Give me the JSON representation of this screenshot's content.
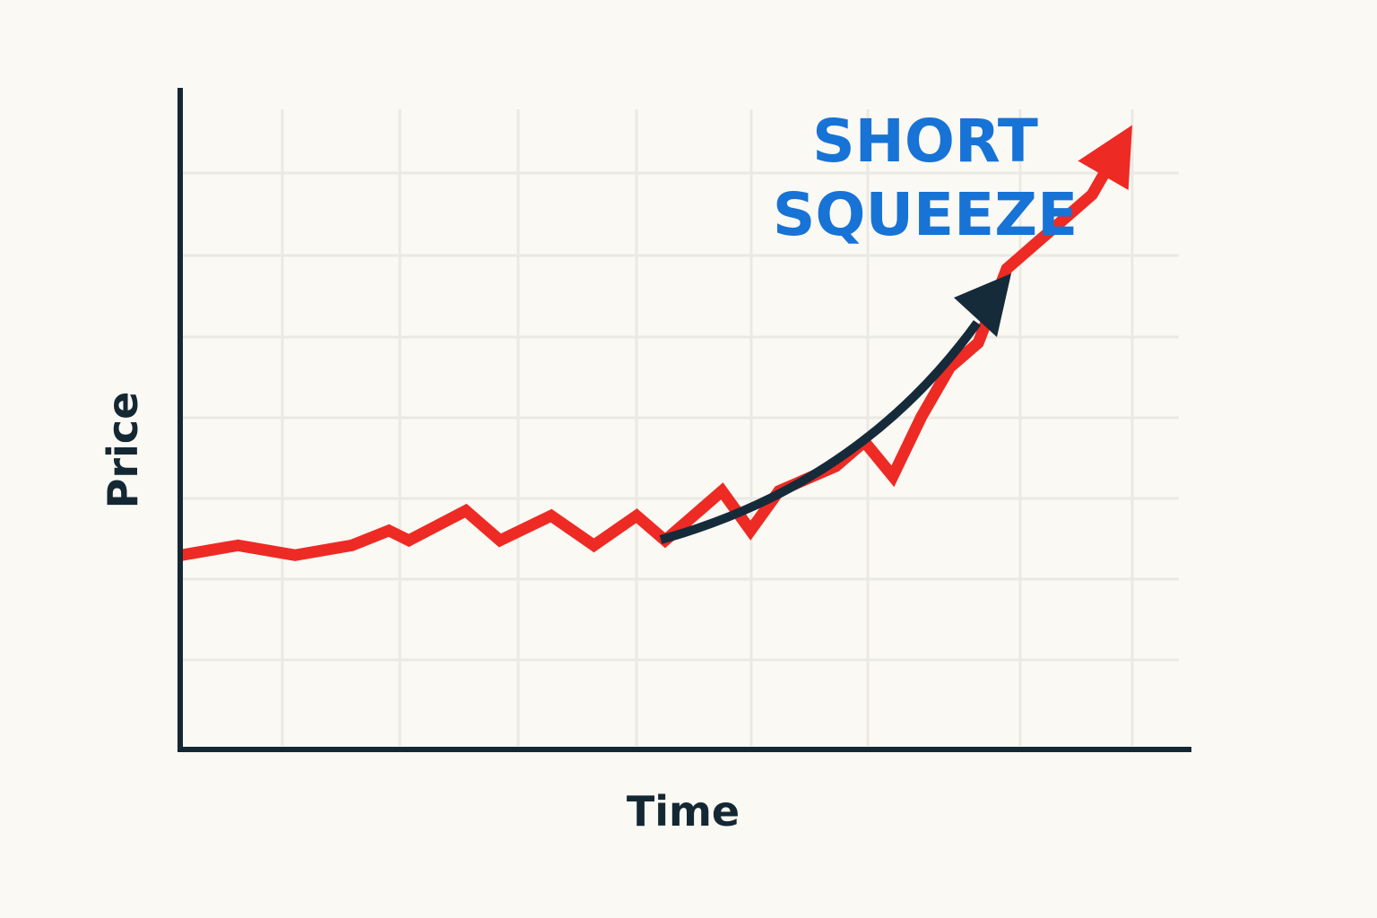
{
  "chart_data": {
    "type": "line",
    "title": "",
    "xlabel": "Time",
    "ylabel": "Price",
    "xlim": [
      0,
      33
    ],
    "ylim": [
      0,
      10
    ],
    "grid": true,
    "axis_color": "#142833",
    "grid_color": "#ebe9e3",
    "series": [
      {
        "color": "#ee2a24",
        "x": [
          0,
          2,
          4,
          6,
          7.3,
          8,
          10,
          11.2,
          13,
          14.5,
          16,
          17,
          19,
          20,
          21,
          23,
          24,
          25,
          26,
          27,
          28,
          29,
          30,
          31,
          32,
          33
        ],
        "y": [
          1.7,
          1.9,
          1.7,
          1.9,
          2.2,
          2.0,
          2.6,
          2.0,
          2.5,
          1.9,
          2.5,
          2.0,
          3.0,
          2.2,
          3.0,
          3.5,
          4.0,
          3.3,
          4.5,
          5.5,
          6.0,
          7.5,
          8.0,
          8.5,
          9.0,
          10.0
        ]
      }
    ],
    "annotations": [
      {
        "lines": [
          "SHORT",
          "SQUEEZE"
        ],
        "color": "#1773d6"
      }
    ]
  }
}
